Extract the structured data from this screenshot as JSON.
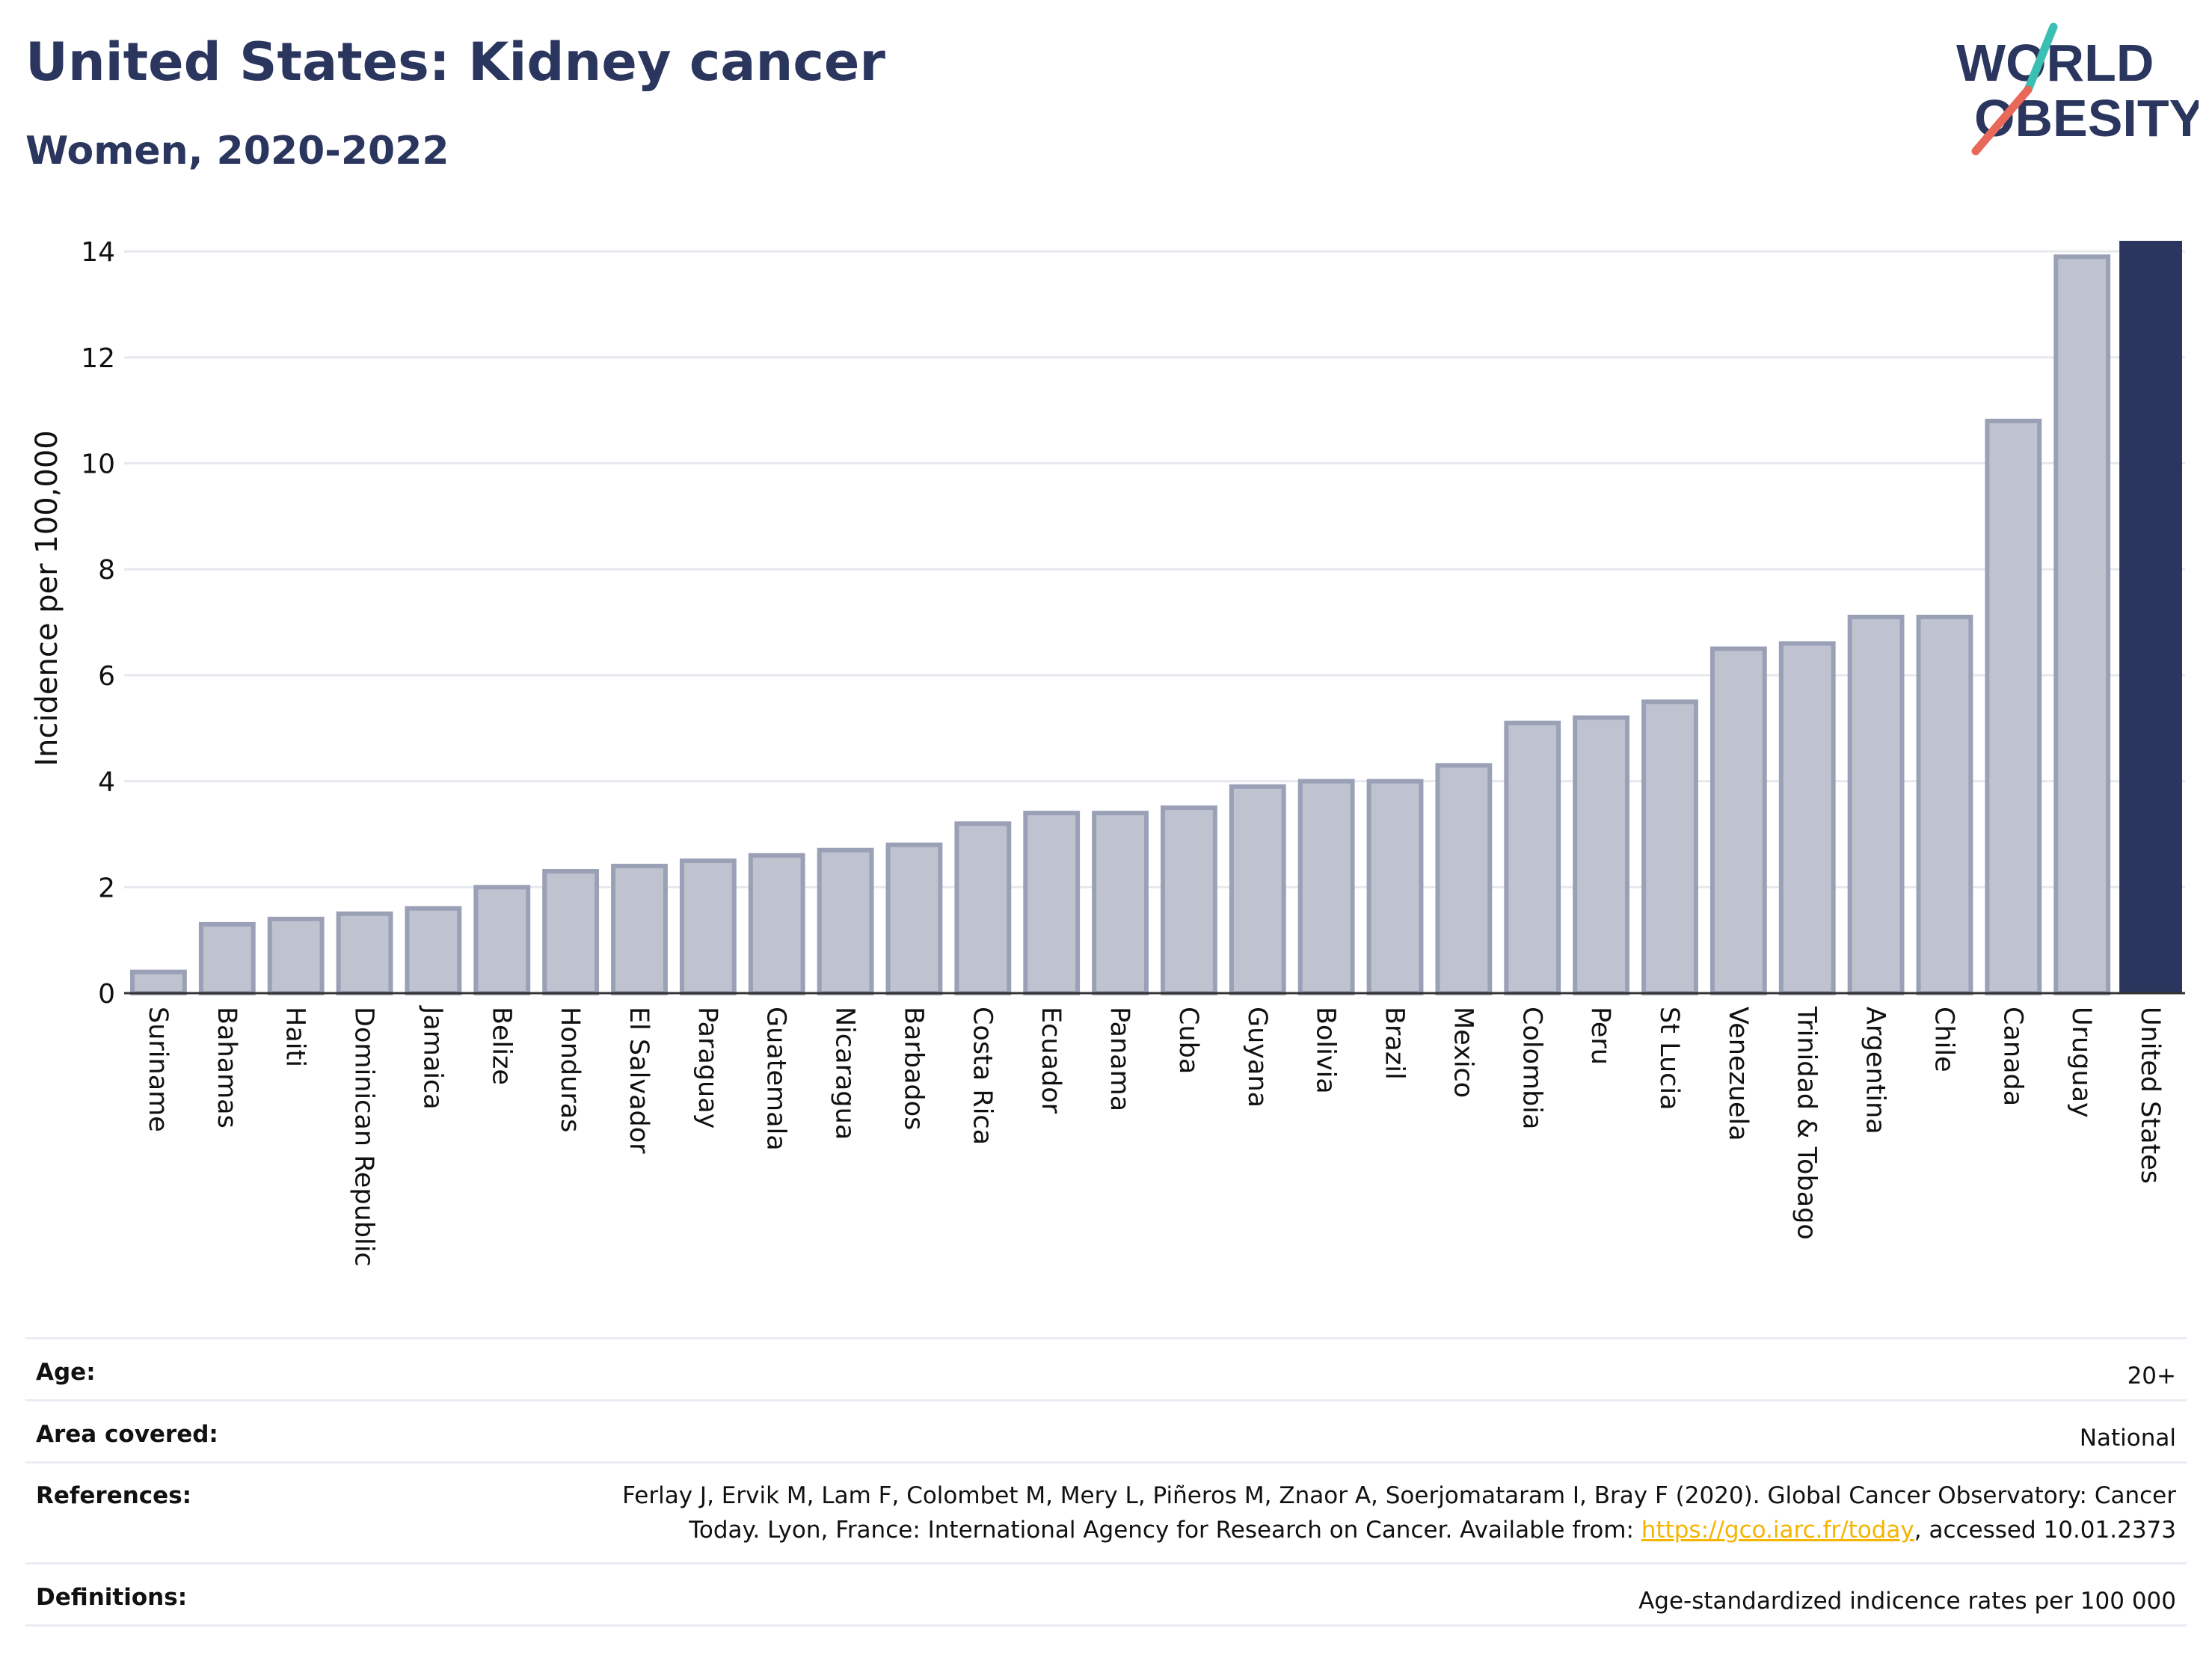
{
  "header": {
    "title": "United States: Kidney cancer",
    "subtitle": "Women, 2020-2022"
  },
  "logo": {
    "line1": "WORLD",
    "line2": "OBESITY",
    "slash_colors": [
      "#3bbfb2",
      "#e8685a"
    ]
  },
  "colors": {
    "bar": "#bfc3d0",
    "bar_outline": "#9aa0b5",
    "highlight": "#2b365f",
    "text": "#2b365f"
  },
  "chart_data": {
    "type": "bar",
    "ylabel": "Incidence per 100,000",
    "ylim": [
      0,
      14.2
    ],
    "yticks": [
      0,
      2,
      4,
      6,
      8,
      10,
      12,
      14
    ],
    "grid": true,
    "highlight": "United States",
    "categories": [
      "Suriname",
      "Bahamas",
      "Haiti",
      "Dominican Republic",
      "Jamaica",
      "Belize",
      "Honduras",
      "El Salvador",
      "Paraguay",
      "Guatemala",
      "Nicaragua",
      "Barbados",
      "Costa Rica",
      "Ecuador",
      "Panama",
      "Cuba",
      "Guyana",
      "Bolivia",
      "Brazil",
      "Mexico",
      "Colombia",
      "Peru",
      "St Lucia",
      "Venezuela",
      "Trinidad & Tobago",
      "Argentina",
      "Chile",
      "Canada",
      "Uruguay",
      "United States"
    ],
    "values": [
      0.4,
      1.3,
      1.4,
      1.5,
      1.6,
      2.0,
      2.3,
      2.4,
      2.5,
      2.6,
      2.7,
      2.8,
      3.2,
      3.4,
      3.4,
      3.5,
      3.9,
      4.0,
      4.0,
      4.3,
      5.1,
      5.2,
      5.5,
      6.5,
      6.6,
      7.1,
      7.1,
      10.8,
      13.9,
      14.2
    ]
  },
  "info": {
    "age_label": "Age:",
    "age_value": "20+",
    "area_label": "Area covered:",
    "area_value": "National",
    "references_label": "References:",
    "references_text1": "Ferlay J, Ervik M, Lam F, Colombet M, Mery L, Piñeros M, Znaor A, Soerjomataram I, Bray F (2020). Global Cancer Observatory: Cancer",
    "references_text2": "Today. Lyon, France: International Agency for Research on Cancer. Available from: ",
    "references_link": "https://gco.iarc.fr/today",
    "references_text3": ", accessed 10.01.2373",
    "definitions_label": "Definitions:",
    "definitions_value": "Age-standardized indicence rates per 100 000"
  }
}
